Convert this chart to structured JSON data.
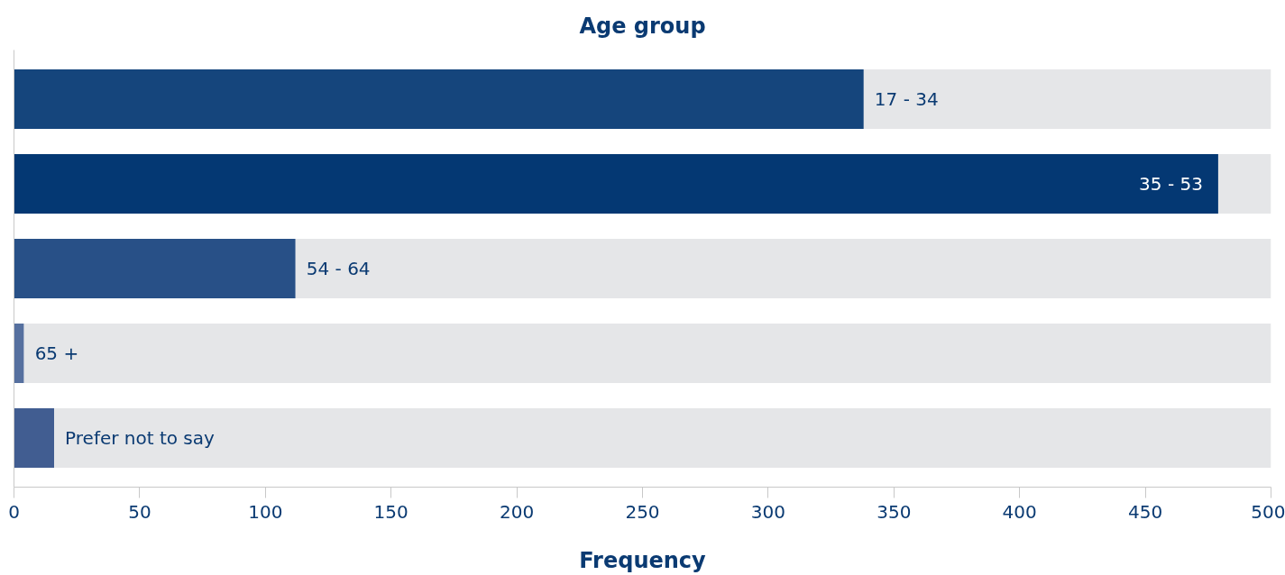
{
  "chart_data": {
    "type": "bar",
    "orientation": "horizontal",
    "stacked": true,
    "title": "Age group",
    "xlabel": "Frequency",
    "categories": [
      "17 - 34",
      "35 - 53",
      "54 - 64",
      "65 +",
      "Prefer not to say"
    ],
    "series": [
      {
        "values": [
          338,
          479,
          112,
          4,
          16
        ],
        "colors": [
          "#15457c",
          "#043873",
          "#285087",
          "#56709f",
          "#415d91"
        ]
      },
      {
        "color": "#e5e6e8",
        "values": [
          162,
          21,
          388,
          496,
          484
        ]
      }
    ],
    "xlim": [
      0,
      500
    ],
    "xticks": [
      0,
      50,
      100,
      150,
      200,
      250,
      300,
      350,
      400,
      450,
      500
    ],
    "tick_labels": "x",
    "grid": false
  }
}
